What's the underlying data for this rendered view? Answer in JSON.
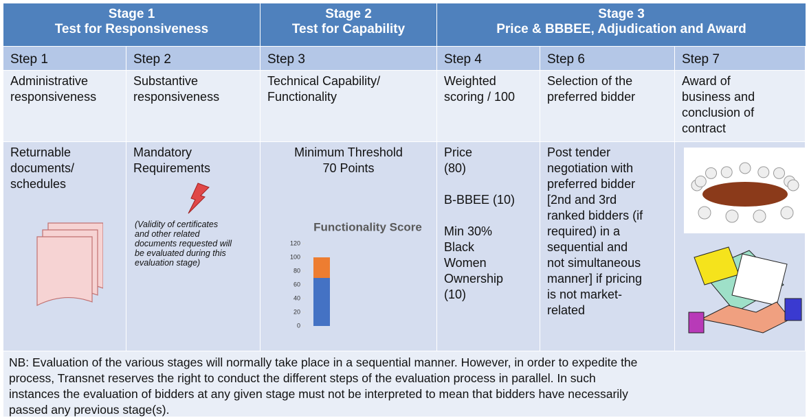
{
  "stages": [
    {
      "name": "Stage 1",
      "title": "Test for Responsiveness"
    },
    {
      "name": "Stage 2",
      "title": "Test for Capability"
    },
    {
      "name": "Stage 3",
      "title": "Price & BBBEE, Adjudication and Award"
    }
  ],
  "steps": [
    "Step 1",
    "Step 2",
    "Step 3",
    "Step 4",
    "Step 6",
    "Step 7"
  ],
  "descriptions": [
    [
      "Administrative",
      "responsiveness"
    ],
    [
      "Substantive",
      "responsiveness"
    ],
    [
      "Technical Capability/",
      "Functionality"
    ],
    [
      "Weighted",
      "scoring / 100"
    ],
    [
      "Selection of the",
      "preferred bidder"
    ],
    [
      "Award of",
      "business and",
      "conclusion of",
      "contract"
    ]
  ],
  "details": {
    "step1": [
      "Returnable",
      "documents/",
      "schedules"
    ],
    "step2": {
      "heading": [
        "Mandatory",
        "Requirements"
      ],
      "note": [
        "(Validity of certificates",
        "and other related",
        "documents requested will",
        "be evaluated during this",
        "evaluation stage)"
      ]
    },
    "step3": [
      "Minimum Threshold",
      "70 Points"
    ],
    "step4": [
      [
        "Price",
        "(80)"
      ],
      [
        "B-BBEE (10)"
      ],
      [
        "Min 30%",
        "Black",
        "Women",
        "Ownership",
        "(10)"
      ]
    ],
    "step6": [
      "Post tender",
      "negotiation with",
      "preferred bidder",
      "[2nd and 3rd",
      "ranked bidders (if",
      "required) in a",
      "sequential and",
      "not simultaneous",
      "manner] if pricing",
      "is not market-",
      "related"
    ]
  },
  "note": [
    "NB: Evaluation of the various stages will normally take place in a sequential manner. However, in order to expedite the",
    "process, Transnet reserves the right to conduct the different steps of the evaluation process in parallel. In such",
    "instances the evaluation of bidders at any given stage must not be interpreted to mean that bidders have necessarily",
    "passed any previous stage(s)."
  ],
  "chart_data": {
    "type": "bar",
    "title": "Functionality Score",
    "ylim": [
      0,
      120
    ],
    "yticks": [
      0,
      20,
      40,
      60,
      80,
      100,
      120
    ],
    "series": [
      {
        "color": "#4472c4",
        "values": [
          70
        ]
      },
      {
        "color": "#ed7d31",
        "values": [
          30
        ]
      }
    ]
  }
}
